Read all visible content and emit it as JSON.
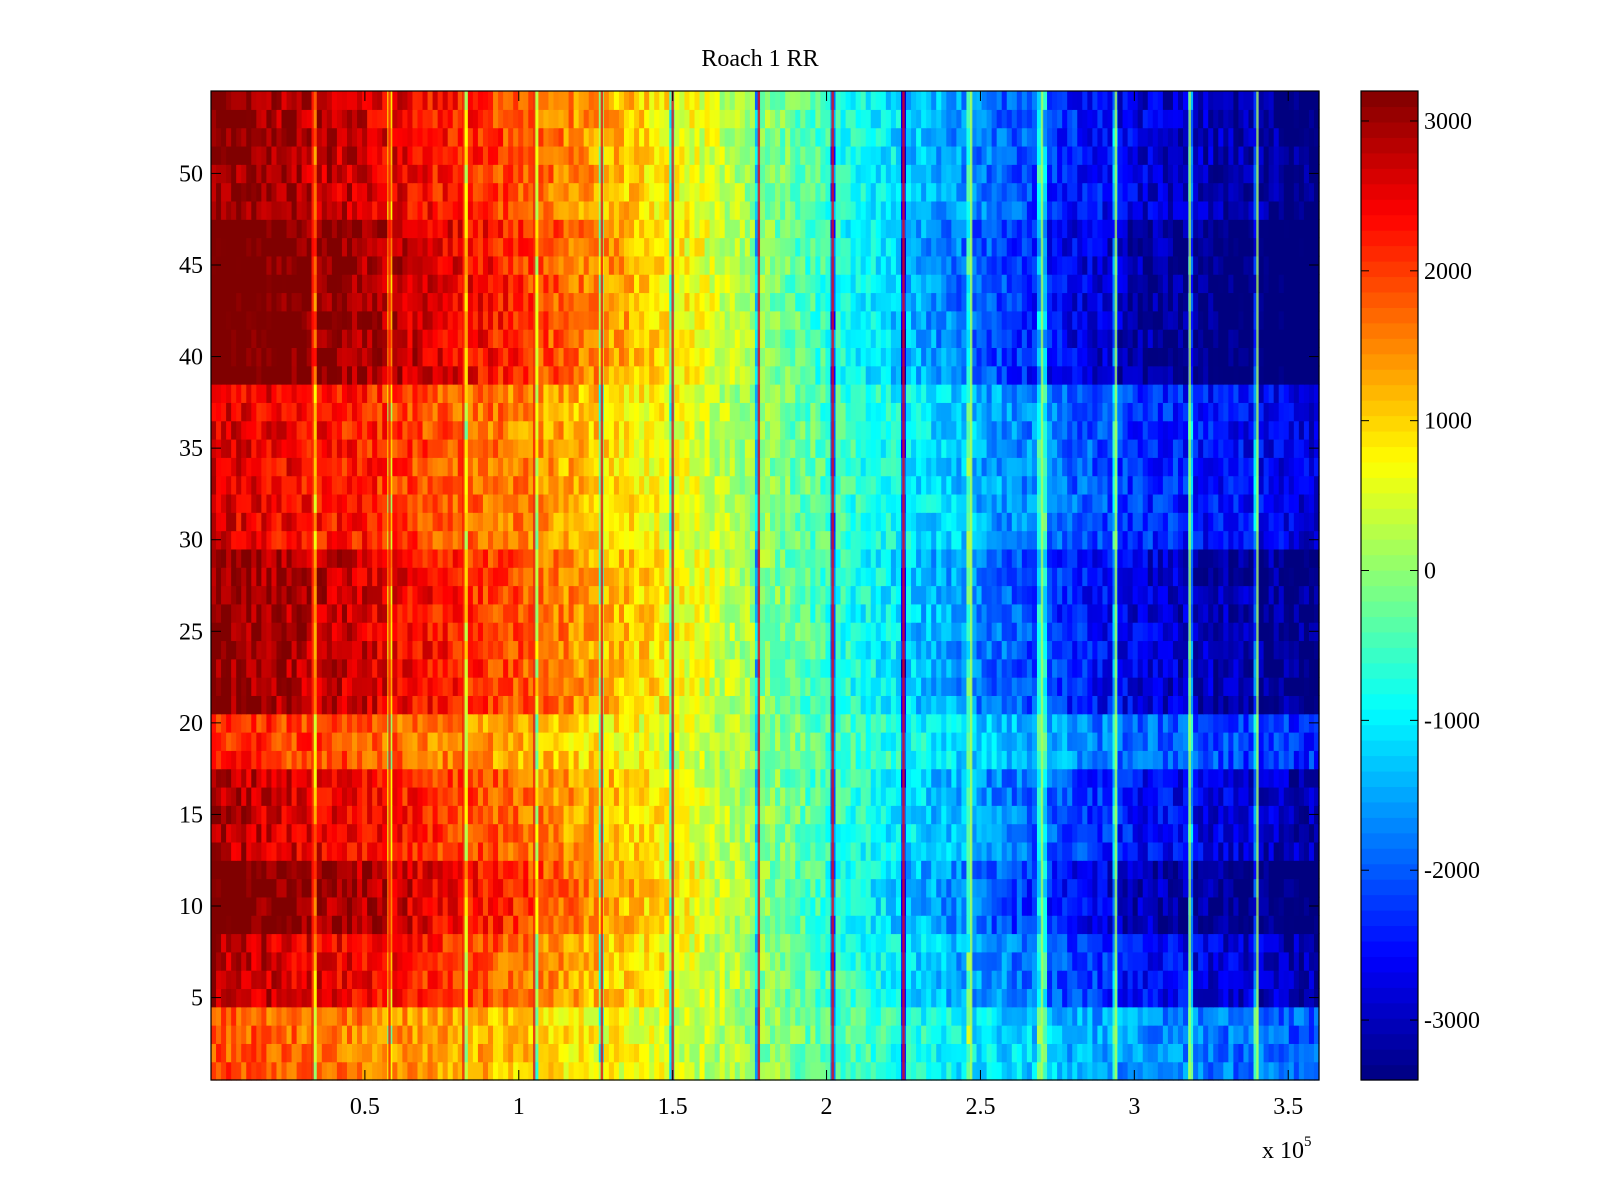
{
  "chart_data": {
    "type": "heatmap",
    "title": "Roach 1 RR",
    "xlabel": "",
    "ylabel": "",
    "x_exponent_base": "x 10",
    "x_exponent_power": "5",
    "xlim": [
      0,
      3.6
    ],
    "ylim": [
      0.5,
      54.5
    ],
    "x_ticks": [
      0.5,
      1,
      1.5,
      2,
      2.5,
      3,
      3.5
    ],
    "x_tick_labels": [
      "0.5",
      "1",
      "1.5",
      "2",
      "2.5",
      "3",
      "3.5"
    ],
    "y_ticks": [
      5,
      10,
      15,
      20,
      25,
      30,
      35,
      40,
      45,
      50
    ],
    "y_tick_labels": [
      "5",
      "10",
      "15",
      "20",
      "25",
      "30",
      "35",
      "40",
      "45",
      "50"
    ],
    "colorbar": {
      "range": [
        -3400,
        3200
      ],
      "ticks": [
        3000,
        2000,
        1000,
        0,
        -1000,
        -2000,
        -3000
      ],
      "tick_labels": [
        "3000",
        "2000",
        "1000",
        "0",
        "-1000",
        "-2000",
        "-3000"
      ],
      "colormap": "jet"
    },
    "rows": 54,
    "value_profile_x": [
      0,
      0.5,
      1.0,
      1.5,
      2.0,
      2.5,
      3.0,
      3.6
    ],
    "value_profile_mean": [
      2900,
      2400,
      1700,
      700,
      -500,
      -1600,
      -2500,
      -3100
    ],
    "row_amplitude_bands": [
      {
        "rows": [
          1,
          4
        ],
        "factor": 0.65
      },
      {
        "rows": [
          5,
          8
        ],
        "factor": 1.0
      },
      {
        "rows": [
          9,
          12
        ],
        "factor": 1.2
      },
      {
        "rows": [
          13,
          17
        ],
        "factor": 1.0
      },
      {
        "rows": [
          18,
          20
        ],
        "factor": 0.75
      },
      {
        "rows": [
          21,
          29
        ],
        "factor": 1.1
      },
      {
        "rows": [
          30,
          38
        ],
        "factor": 0.9
      },
      {
        "rows": [
          39,
          47
        ],
        "factor": 1.25
      },
      {
        "rows": [
          48,
          54
        ],
        "factor": 1.1
      }
    ],
    "stripe_x": [
      0.33,
      0.58,
      0.82,
      1.05,
      1.27,
      1.5,
      1.78,
      2.02,
      2.25,
      2.47,
      2.7,
      2.94,
      3.18,
      3.4
    ],
    "colors": {
      "background": "#ffffff",
      "axis": "#000000"
    }
  }
}
